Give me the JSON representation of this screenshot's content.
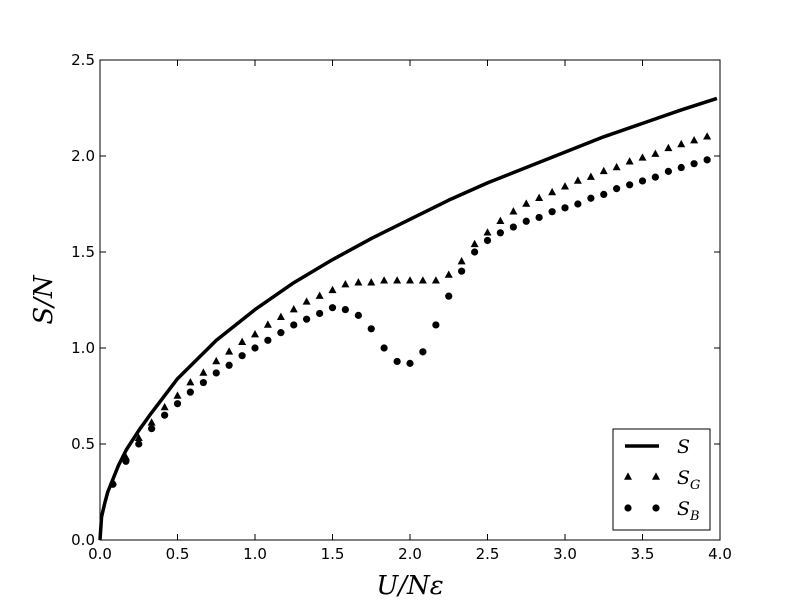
{
  "chart_data": {
    "type": "line",
    "title": "",
    "xlabel": "U/Nε",
    "ylabel": "S/N",
    "xlim": [
      0.0,
      4.0
    ],
    "ylim": [
      0.0,
      2.5
    ],
    "xticks": [
      "0.0",
      "0.5",
      "1.0",
      "1.5",
      "2.0",
      "2.5",
      "3.0",
      "3.5",
      "4.0"
    ],
    "yticks": [
      "0.0",
      "0.5",
      "1.0",
      "1.5",
      "2.0",
      "2.5"
    ],
    "grid": false,
    "legend_position": "bottom-right",
    "series": [
      {
        "name": "S",
        "name_main": "S",
        "name_sub": "",
        "style": "solid-line",
        "color": "#000000",
        "x": [
          0.0,
          0.01,
          0.03,
          0.05,
          0.08,
          0.12,
          0.17,
          0.25,
          0.33,
          0.5,
          0.75,
          1.0,
          1.25,
          1.5,
          1.75,
          2.0,
          2.25,
          2.5,
          2.75,
          3.0,
          3.25,
          3.5,
          3.75,
          3.98
        ],
        "y": [
          0.0,
          0.12,
          0.19,
          0.25,
          0.31,
          0.39,
          0.47,
          0.57,
          0.66,
          0.84,
          1.04,
          1.2,
          1.34,
          1.46,
          1.57,
          1.67,
          1.77,
          1.86,
          1.94,
          2.02,
          2.1,
          2.17,
          2.24,
          2.3
        ]
      },
      {
        "name": "S_G",
        "name_main": "S",
        "name_sub": "G",
        "style": "triangle-markers",
        "color": "#000000",
        "x": [
          0.083,
          0.167,
          0.25,
          0.333,
          0.417,
          0.5,
          0.583,
          0.667,
          0.75,
          0.833,
          0.917,
          1.0,
          1.083,
          1.167,
          1.25,
          1.333,
          1.417,
          1.5,
          1.583,
          1.667,
          1.75,
          1.833,
          1.917,
          2.0,
          2.083,
          2.167,
          2.25,
          2.333,
          2.417,
          2.5,
          2.583,
          2.667,
          2.75,
          2.833,
          2.917,
          3.0,
          3.083,
          3.167,
          3.25,
          3.333,
          3.417,
          3.5,
          3.583,
          3.667,
          3.75,
          3.833,
          3.917
        ],
        "y": [
          0.3,
          0.43,
          0.53,
          0.61,
          0.69,
          0.75,
          0.82,
          0.87,
          0.93,
          0.98,
          1.03,
          1.07,
          1.12,
          1.16,
          1.2,
          1.24,
          1.27,
          1.3,
          1.33,
          1.34,
          1.34,
          1.35,
          1.35,
          1.35,
          1.35,
          1.35,
          1.38,
          1.45,
          1.54,
          1.6,
          1.66,
          1.71,
          1.75,
          1.78,
          1.81,
          1.84,
          1.87,
          1.89,
          1.92,
          1.94,
          1.97,
          1.99,
          2.01,
          2.04,
          2.06,
          2.08,
          2.1
        ]
      },
      {
        "name": "S_B",
        "name_main": "S",
        "name_sub": "B",
        "style": "circle-markers",
        "color": "#000000",
        "x": [
          0.083,
          0.167,
          0.25,
          0.333,
          0.417,
          0.5,
          0.583,
          0.667,
          0.75,
          0.833,
          0.917,
          1.0,
          1.083,
          1.167,
          1.25,
          1.333,
          1.417,
          1.5,
          1.583,
          1.667,
          1.75,
          1.833,
          1.917,
          2.0,
          2.083,
          2.167,
          2.25,
          2.333,
          2.417,
          2.5,
          2.583,
          2.667,
          2.75,
          2.833,
          2.917,
          3.0,
          3.083,
          3.167,
          3.25,
          3.333,
          3.417,
          3.5,
          3.583,
          3.667,
          3.75,
          3.833,
          3.917
        ],
        "y": [
          0.29,
          0.41,
          0.5,
          0.58,
          0.65,
          0.71,
          0.77,
          0.82,
          0.87,
          0.91,
          0.96,
          1.0,
          1.04,
          1.08,
          1.12,
          1.15,
          1.18,
          1.21,
          1.2,
          1.17,
          1.1,
          1.0,
          0.93,
          0.92,
          0.98,
          1.12,
          1.27,
          1.4,
          1.5,
          1.56,
          1.6,
          1.63,
          1.66,
          1.68,
          1.71,
          1.73,
          1.75,
          1.78,
          1.8,
          1.83,
          1.85,
          1.87,
          1.89,
          1.92,
          1.94,
          1.96,
          1.98
        ]
      }
    ]
  }
}
